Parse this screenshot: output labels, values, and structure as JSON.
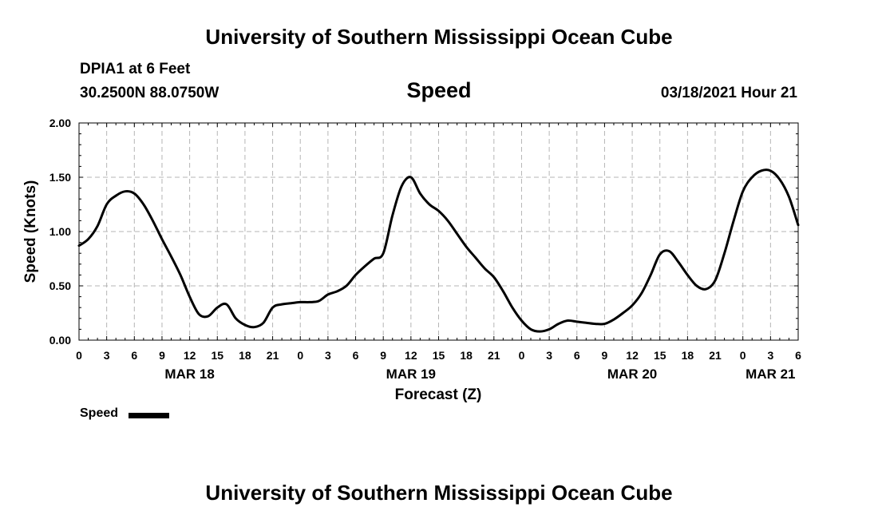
{
  "header": {
    "title": "University of Southern Mississippi Ocean Cube",
    "station": "DPIA1 at 6 Feet",
    "coords": "30.2500N 88.0750W",
    "variable": "Speed",
    "issued": "03/18/2021 Hour 21"
  },
  "footer": {
    "title": "University of Southern Mississippi Ocean Cube"
  },
  "legend": {
    "label": "Speed",
    "color": "#000000"
  },
  "chart_data": {
    "type": "line",
    "title": "Speed",
    "xlabel": "Forecast (Z)",
    "ylabel": "Speed (Knots)",
    "xlim": [
      0,
      78
    ],
    "ylim": [
      0,
      2.0
    ],
    "grid": true,
    "yticks": [
      0.0,
      0.5,
      1.0,
      1.5,
      2.0
    ],
    "ytick_labels": [
      "0.00",
      "0.50",
      "1.00",
      "1.50",
      "2.00"
    ],
    "xticks": [
      0,
      3,
      6,
      9,
      12,
      15,
      18,
      21,
      24,
      27,
      30,
      33,
      36,
      39,
      42,
      45,
      48,
      51,
      54,
      57,
      60,
      63,
      66,
      69,
      72,
      75,
      78
    ],
    "xtick_labels": [
      "0",
      "3",
      "6",
      "9",
      "12",
      "15",
      "18",
      "21",
      "0",
      "3",
      "6",
      "9",
      "12",
      "15",
      "18",
      "21",
      "0",
      "3",
      "6",
      "9",
      "12",
      "15",
      "18",
      "21",
      "0",
      "3",
      "6"
    ],
    "date_labels": [
      {
        "x": 12,
        "label": "MAR 18"
      },
      {
        "x": 36,
        "label": "MAR 19"
      },
      {
        "x": 60,
        "label": "MAR 20"
      },
      {
        "x": 75,
        "label": "MAR 21"
      }
    ],
    "series": [
      {
        "name": "Speed",
        "color": "#000000",
        "x": [
          0,
          1,
          2,
          3,
          4,
          5,
          6,
          7,
          8,
          9,
          10,
          11,
          12,
          13,
          14,
          15,
          16,
          17,
          18,
          19,
          20,
          21,
          22,
          23,
          24,
          25,
          26,
          27,
          28,
          29,
          30,
          31,
          32,
          33,
          34,
          35,
          36,
          37,
          38,
          39,
          40,
          41,
          42,
          43,
          44,
          45,
          46,
          47,
          48,
          49,
          50,
          51,
          52,
          53,
          54,
          55,
          56,
          57,
          58,
          59,
          60,
          61,
          62,
          63,
          64,
          65,
          66,
          67,
          68,
          69,
          70,
          71,
          72,
          73,
          74,
          75,
          76,
          77,
          78
        ],
        "values": [
          0.87,
          0.93,
          1.05,
          1.25,
          1.33,
          1.37,
          1.35,
          1.25,
          1.1,
          0.93,
          0.77,
          0.6,
          0.4,
          0.24,
          0.22,
          0.3,
          0.33,
          0.2,
          0.14,
          0.12,
          0.16,
          0.3,
          0.33,
          0.34,
          0.35,
          0.35,
          0.36,
          0.42,
          0.45,
          0.5,
          0.6,
          0.68,
          0.75,
          0.8,
          1.15,
          1.42,
          1.5,
          1.35,
          1.25,
          1.19,
          1.1,
          0.98,
          0.86,
          0.76,
          0.66,
          0.58,
          0.45,
          0.3,
          0.18,
          0.1,
          0.08,
          0.1,
          0.15,
          0.18,
          0.17,
          0.16,
          0.15,
          0.15,
          0.19,
          0.25,
          0.32,
          0.43,
          0.6,
          0.79,
          0.82,
          0.72,
          0.6,
          0.5,
          0.47,
          0.55,
          0.8,
          1.1,
          1.37,
          1.5,
          1.56,
          1.56,
          1.48,
          1.32,
          1.06
        ]
      }
    ]
  }
}
